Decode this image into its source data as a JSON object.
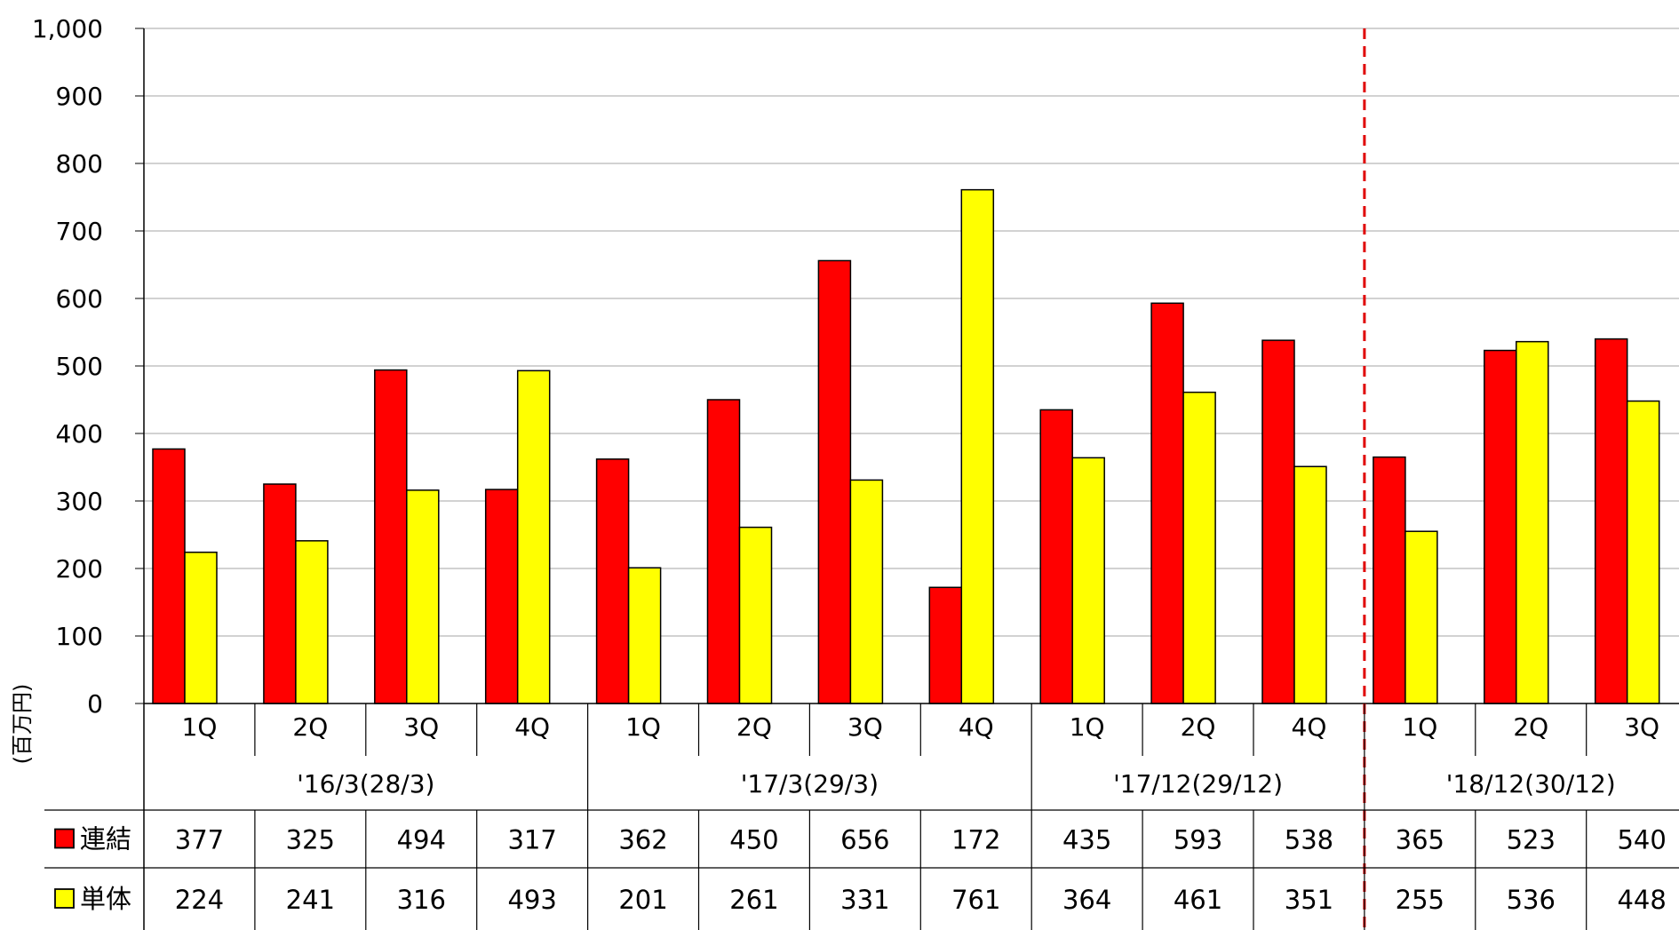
{
  "chart_data": {
    "type": "bar",
    "ylabel": "(百万円)",
    "ylim": [
      0,
      1000
    ],
    "yticks": [
      "0",
      "100",
      "200",
      "300",
      "400",
      "500",
      "600",
      "700",
      "800",
      "900",
      "1,000"
    ],
    "grid": true,
    "legend_placement": "bottom-left table",
    "groups": [
      {
        "label": "'16/3(28/3)",
        "quarters": [
          "1Q",
          "2Q",
          "3Q",
          "4Q"
        ]
      },
      {
        "label": "'17/3(29/3)",
        "quarters": [
          "1Q",
          "2Q",
          "3Q",
          "4Q"
        ]
      },
      {
        "label": "'17/12(29/12)",
        "quarters": [
          "1Q",
          "2Q",
          "4Q"
        ]
      },
      {
        "label": "'18/12(30/12)",
        "quarters": [
          "1Q",
          "2Q",
          "3Q"
        ]
      }
    ],
    "series": [
      {
        "name": "連結",
        "color": "#ff0000",
        "values": [
          377,
          325,
          494,
          317,
          362,
          450,
          656,
          172,
          435,
          593,
          538,
          365,
          523,
          540
        ]
      },
      {
        "name": "単体",
        "color": "#ffff00",
        "values": [
          224,
          241,
          316,
          493,
          201,
          261,
          331,
          761,
          364,
          461,
          351,
          255,
          536,
          448
        ]
      }
    ],
    "divider_color": "#e00000"
  }
}
